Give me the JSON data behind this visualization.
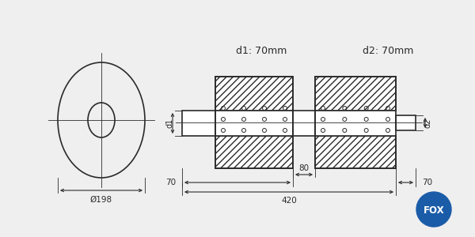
{
  "bg_color": "#efefef",
  "line_color": "#2a2a2a",
  "title_d1": "d1: 70mm",
  "title_d2": "d2: 70mm",
  "dim_198": "Ø198",
  "dim_70_left": "70",
  "dim_420": "420",
  "dim_80": "80",
  "dim_70_right": "70",
  "label_d1": "d1",
  "label_d2": "d2",
  "fox_text": "FOX",
  "fox_color": "#1a5ca8"
}
